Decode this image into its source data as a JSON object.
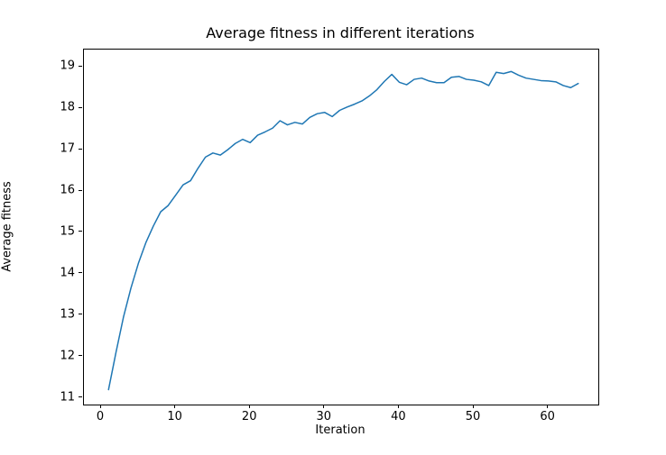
{
  "figure": {
    "background_color": "#ffffff",
    "text_color": "#000000"
  },
  "chart_data": {
    "type": "line",
    "title": "Average fitness in different iterations",
    "xlabel": "Iteration",
    "ylabel": "Average fitness",
    "series": [
      {
        "name": "Average fitness",
        "color": "#1f77b4",
        "x": [
          1,
          2,
          3,
          4,
          5,
          6,
          7,
          8,
          9,
          10,
          11,
          12,
          13,
          14,
          15,
          16,
          17,
          18,
          19,
          20,
          21,
          22,
          23,
          24,
          25,
          26,
          27,
          28,
          29,
          30,
          31,
          32,
          33,
          34,
          35,
          36,
          37,
          38,
          39,
          40,
          41,
          42,
          43,
          44,
          45,
          46,
          47,
          48,
          49,
          50,
          51,
          52,
          53,
          54,
          55,
          56,
          57,
          58,
          59,
          60,
          61,
          62,
          63,
          64
        ],
        "y": [
          11.2,
          12.1,
          12.95,
          13.65,
          14.25,
          14.75,
          15.15,
          15.5,
          15.65,
          15.9,
          16.15,
          16.25,
          16.55,
          16.82,
          16.92,
          16.87,
          17.0,
          17.15,
          17.25,
          17.17,
          17.35,
          17.43,
          17.52,
          17.7,
          17.6,
          17.66,
          17.62,
          17.78,
          17.87,
          17.9,
          17.8,
          17.95,
          18.03,
          18.1,
          18.18,
          18.3,
          18.45,
          18.65,
          18.82,
          18.63,
          18.57,
          18.7,
          18.73,
          18.66,
          18.62,
          18.62,
          18.75,
          18.77,
          18.7,
          18.68,
          18.64,
          18.55,
          18.87,
          18.84,
          18.89,
          18.8,
          18.73,
          18.7,
          18.67,
          18.66,
          18.64,
          18.55,
          18.5,
          18.6
        ]
      }
    ],
    "xlim": [
      -2.3,
      66.7
    ],
    "ylim": [
      10.84,
      19.42
    ],
    "xticks": [
      0,
      10,
      20,
      30,
      40,
      50,
      60
    ],
    "yticks": [
      11,
      12,
      13,
      14,
      15,
      16,
      17,
      18,
      19
    ],
    "grid": false,
    "legend": null
  }
}
